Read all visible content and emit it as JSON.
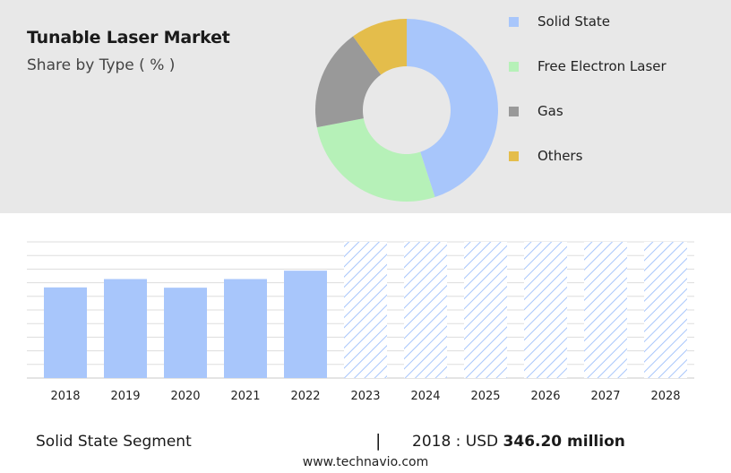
{
  "title": "Tunable Laser Market",
  "subtitle": "Share by Type ( % )",
  "chart_data": [
    {
      "type": "pie",
      "variant": "donut",
      "categories": [
        "Solid State",
        "Free Electron Laser",
        "Gas",
        "Others"
      ],
      "values": [
        45,
        27,
        18,
        10
      ],
      "colors": [
        "#a8c6fb",
        "#b6f1b8",
        "#999999",
        "#e4bd4b"
      ],
      "legend_position": "right"
    },
    {
      "type": "bar",
      "categories": [
        "2018",
        "2019",
        "2020",
        "2021",
        "2022",
        "2023",
        "2024",
        "2025",
        "2026",
        "2027",
        "2028"
      ],
      "values": [
        346.2,
        378,
        345,
        378,
        410,
        null,
        null,
        null,
        null,
        null,
        null
      ],
      "forecast_categories": [
        "2023",
        "2024",
        "2025",
        "2026",
        "2027",
        "2028"
      ],
      "ylim": [
        0,
        520
      ],
      "grid": true,
      "bar_color": "#a8c6fb",
      "forecast_color": "#a8c6fb"
    }
  ],
  "footer": {
    "segment": "Solid State Segment",
    "divider": "|",
    "value_prefix": "2018 : USD",
    "value_amount": "346.20 million",
    "url": "www.technavio.com"
  }
}
